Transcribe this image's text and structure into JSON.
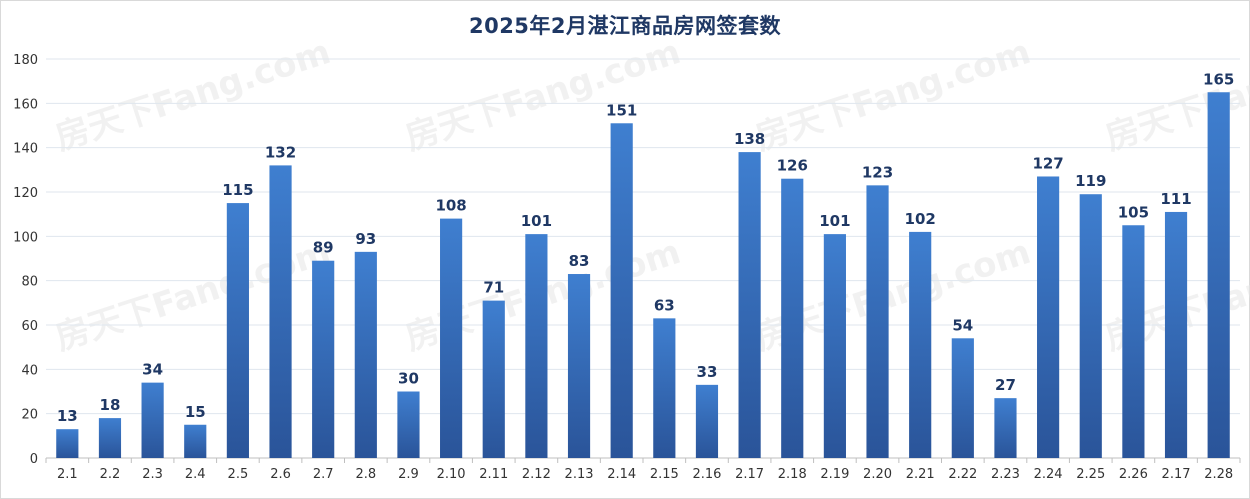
{
  "chart_data": {
    "type": "bar",
    "title": "2025年2月湛江商品房网签套数",
    "xlabel": "",
    "ylabel": "",
    "ylim": [
      0,
      180
    ],
    "yticks": [
      0,
      20,
      40,
      60,
      80,
      100,
      120,
      140,
      160,
      180
    ],
    "grid": true,
    "legend": "none",
    "categories": [
      "2.1",
      "2.2",
      "2.3",
      "2.4",
      "2.5",
      "2.6",
      "2.7",
      "2.8",
      "2.9",
      "2.10",
      "2.11",
      "2.12",
      "2.13",
      "2.14",
      "2.15",
      "2.16",
      "2.17",
      "2.18",
      "2.19",
      "2.20",
      "2.21",
      "2.22",
      "2.23",
      "2.24",
      "2.25",
      "2.26",
      "2.17",
      "2.28"
    ],
    "values": [
      13,
      18,
      34,
      15,
      115,
      132,
      89,
      93,
      30,
      108,
      71,
      101,
      83,
      151,
      63,
      33,
      138,
      126,
      101,
      123,
      102,
      54,
      27,
      127,
      119,
      105,
      111,
      165
    ],
    "bar_color_top": "#3f7fd0",
    "bar_color_bottom": "#2a5499",
    "label_color": "#1f3864",
    "watermark": "房天下Fang.com"
  }
}
